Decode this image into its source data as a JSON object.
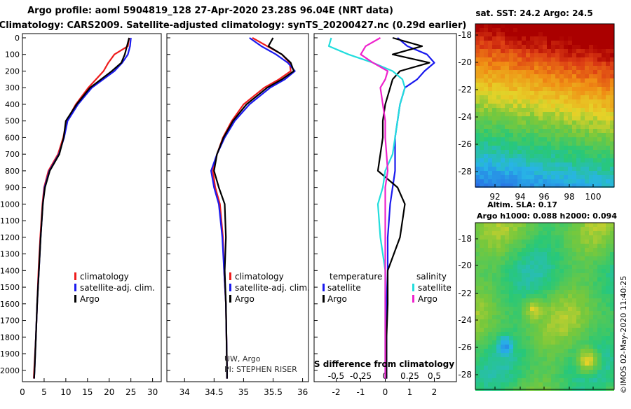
{
  "header": {
    "title_line1": "Argo profile: aoml 5904819_128 27-Apr-2020 23.28S 96.04E (NRT data)",
    "title_line2": "Climatology: CARS2009. Satellite-adjusted climatology: synTS_20200427.nc (0.29d earlier)"
  },
  "colors": {
    "climatology": "#ee1c1c",
    "satellite": "#1a1aee",
    "argo": "#000000",
    "temperature_diff": "#22dddd",
    "salinity_diff": "#ee22cc"
  },
  "depth_axis": {
    "ticks": [
      0,
      100,
      200,
      300,
      400,
      500,
      600,
      700,
      800,
      900,
      1000,
      1100,
      1200,
      1300,
      1400,
      1500,
      1600,
      1700,
      1800,
      1900,
      2000
    ],
    "range": [
      0,
      2060
    ]
  },
  "legends": {
    "temp_panel": [
      "climatology",
      "satellite-adj. clim.",
      "Argo"
    ],
    "salinity_panel": [
      "climatology",
      "satellite-adj. clim.",
      "Argo"
    ],
    "diff_panel": {
      "temperature_heading": "temperature",
      "salinity_heading": "salinity",
      "t_satellite": "satellite",
      "t_argo": "Argo",
      "s_satellite": "satellite",
      "s_argo": "Argo"
    }
  },
  "credits": {
    "line1": "UW, Argo",
    "line2": "PI: STEPHEN RISER"
  },
  "diff_panel_label": "S difference from climatology",
  "maps": {
    "sst_title": "sat. SST: 24.2 Argo: 24.5",
    "sla_title_line1": "Altim. SLA: 0.17",
    "sla_title_line2": "Argo h1000: 0.088 h2000: 0.094",
    "lat_ticks": [
      "-18",
      "-20",
      "-22",
      "-24",
      "-26",
      "-28"
    ],
    "lon_ticks": [
      "92",
      "94",
      "96",
      "98",
      "100"
    ],
    "timestamp": "©IMOS 02-May-2020 11:40:25"
  },
  "chart_data": [
    {
      "type": "line",
      "title": "",
      "xlabel": "",
      "ylabel": "",
      "xlim": [
        0,
        32
      ],
      "ylim": [
        2060,
        0
      ],
      "x_ticks": [
        0,
        5,
        10,
        15,
        20,
        25,
        30
      ],
      "series": [
        {
          "name": "climatology",
          "depth": [
            0,
            50,
            100,
            150,
            200,
            300,
            400,
            500,
            600,
            700,
            800,
            900,
            1000,
            1200,
            1400,
            1600,
            1800,
            2000,
            2050
          ],
          "values": [
            24.6,
            24.3,
            21.2,
            19.8,
            18.7,
            15.2,
            12.3,
            10.2,
            9.4,
            8.2,
            6.0,
            5.0,
            4.6,
            4.1,
            3.7,
            3.4,
            3.1,
            2.7,
            2.6
          ]
        },
        {
          "name": "satellite-adj. clim.",
          "depth": [
            0,
            50,
            100,
            150,
            200,
            300,
            400,
            500,
            600,
            700,
            800,
            900,
            1000,
            1200,
            1400,
            1600,
            1800,
            2000,
            2050
          ],
          "values": [
            25.0,
            24.8,
            24.3,
            23.0,
            21.2,
            16.0,
            12.8,
            10.4,
            9.6,
            8.4,
            6.2,
            5.1,
            4.7,
            4.2,
            3.8,
            3.4,
            3.1,
            2.8,
            2.7
          ]
        },
        {
          "name": "Argo",
          "depth": [
            0,
            50,
            100,
            150,
            200,
            300,
            400,
            500,
            600,
            700,
            800,
            900,
            1000,
            1200,
            1400,
            1600,
            1800,
            2000,
            2050
          ],
          "values": [
            24.6,
            24.1,
            23.6,
            22.8,
            20.6,
            15.6,
            12.5,
            10.0,
            9.5,
            8.5,
            6.3,
            5.2,
            4.7,
            4.2,
            3.8,
            3.4,
            3.1,
            2.8,
            2.7
          ]
        }
      ]
    },
    {
      "type": "line",
      "title": "",
      "xlabel": "",
      "ylabel": "",
      "xlim": [
        33.7,
        36.1
      ],
      "ylim": [
        2060,
        0
      ],
      "x_ticks": [
        34,
        34.5,
        35,
        35.5,
        36
      ],
      "series": [
        {
          "name": "climatology",
          "depth": [
            0,
            50,
            100,
            150,
            200,
            250,
            300,
            400,
            500,
            600,
            700,
            800,
            900,
            1000,
            1200,
            1400,
            1600,
            1800,
            2000,
            2050
          ],
          "values": [
            35.15,
            35.4,
            35.65,
            35.78,
            35.8,
            35.6,
            35.35,
            35.0,
            34.8,
            34.65,
            34.55,
            34.48,
            34.52,
            34.6,
            34.65,
            34.67,
            34.7,
            34.71,
            34.72,
            34.72
          ]
        },
        {
          "name": "satellite-adj. clim.",
          "depth": [
            0,
            50,
            100,
            150,
            200,
            250,
            300,
            400,
            500,
            600,
            700,
            800,
            900,
            1000,
            1200,
            1400,
            1600,
            1800,
            2000,
            2050
          ],
          "values": [
            35.1,
            35.3,
            35.55,
            35.75,
            35.87,
            35.7,
            35.45,
            35.1,
            34.85,
            34.68,
            34.55,
            34.45,
            34.5,
            34.58,
            34.64,
            34.67,
            34.7,
            34.71,
            34.72,
            34.72
          ]
        },
        {
          "name": "Argo",
          "depth": [
            0,
            50,
            100,
            150,
            200,
            250,
            300,
            400,
            500,
            600,
            700,
            800,
            900,
            1000,
            1200,
            1400,
            1600,
            1800,
            2000,
            2050
          ],
          "values": [
            35.5,
            35.42,
            35.65,
            35.8,
            35.85,
            35.65,
            35.4,
            35.05,
            34.82,
            34.66,
            34.55,
            34.5,
            34.58,
            34.68,
            34.7,
            34.68,
            34.7,
            34.71,
            34.72,
            34.72
          ]
        }
      ]
    },
    {
      "type": "line",
      "title": "",
      "xlabel": "S difference from climatology",
      "ylabel": "",
      "xlim": [
        -2.9,
        2.9
      ],
      "ylim": [
        2060,
        0
      ],
      "x_ticks": [
        -2,
        -1,
        0,
        1,
        2
      ],
      "x_ticks_salinity": [
        "-0.5",
        "-0.25",
        "0",
        "0.25",
        "0.5"
      ],
      "series": [
        {
          "name": "temperature satellite",
          "depth": [
            0,
            50,
            100,
            150,
            200,
            250,
            300,
            400,
            500,
            600,
            700,
            800,
            900,
            1000,
            1200,
            1400,
            1600,
            1800,
            2000,
            2050
          ],
          "values": [
            0.5,
            0.9,
            1.7,
            2.0,
            1.6,
            1.3,
            0.8,
            0.6,
            0.5,
            0.4,
            0.4,
            0.4,
            0.3,
            0.2,
            0.1,
            0.1,
            0.05,
            0.05,
            0.05,
            0.05
          ]
        },
        {
          "name": "temperature Argo",
          "depth": [
            0,
            50,
            100,
            150,
            200,
            250,
            300,
            400,
            500,
            600,
            700,
            800,
            900,
            1000,
            1200,
            1400,
            1600,
            1800,
            2000,
            2050
          ],
          "values": [
            0.3,
            1.5,
            0.3,
            1.8,
            0.6,
            0.3,
            0.2,
            0.0,
            -0.1,
            -0.1,
            -0.2,
            -0.3,
            0.5,
            0.8,
            0.6,
            0.1,
            0.1,
            0.05,
            0.05,
            0.05
          ]
        },
        {
          "name": "salinity satellite",
          "depth": [
            0,
            50,
            100,
            150,
            200,
            250,
            300,
            400,
            500,
            600,
            700,
            800,
            900,
            1000,
            1200,
            1400,
            1600,
            1800,
            2000,
            2050
          ],
          "values": [
            -2.2,
            -2.3,
            -1.5,
            -0.5,
            0.3,
            0.7,
            0.8,
            0.6,
            0.5,
            0.4,
            0.3,
            0.0,
            -0.1,
            -0.3,
            -0.2,
            0.0,
            0.0,
            0.0,
            0.0,
            0.0
          ]
        },
        {
          "name": "salinity Argo",
          "depth": [
            0,
            50,
            100,
            150,
            200,
            250,
            300,
            400,
            500,
            600,
            700,
            800,
            900,
            1000,
            1200,
            1400,
            1600,
            1800,
            2000,
            2050
          ],
          "values": [
            -0.2,
            -0.8,
            -1.0,
            -0.5,
            0.1,
            0.0,
            -0.2,
            -0.1,
            0.0,
            0.0,
            0.05,
            0.1,
            0.0,
            0.0,
            0.0,
            0.0,
            0.0,
            0.0,
            0.0,
            0.0
          ]
        }
      ]
    }
  ]
}
